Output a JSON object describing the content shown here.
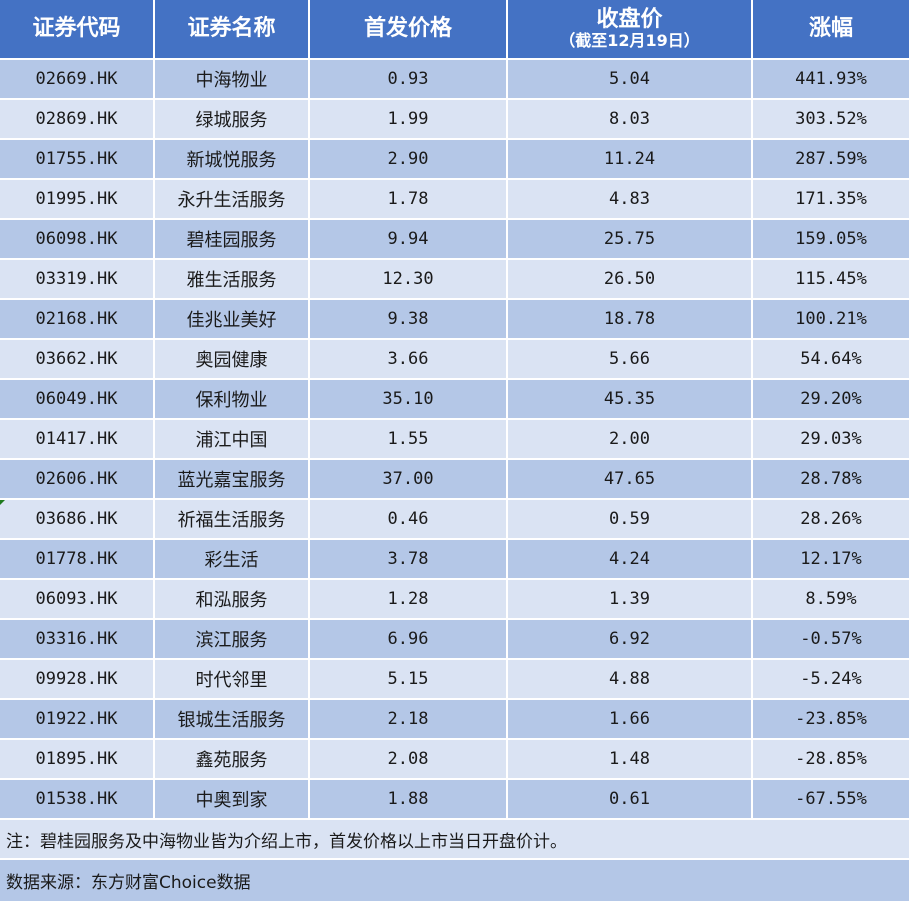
{
  "table": {
    "headers": {
      "code": "证券代码",
      "name": "证券名称",
      "ipo_price": "首发价格",
      "close_price": "收盘价",
      "close_price_sub": "（截至12月19日）",
      "change": "涨幅"
    },
    "rows": [
      {
        "code": "02669.HK",
        "name": "中海物业",
        "ipo_price": "0.93",
        "close_price": "5.04",
        "change": "441.93%"
      },
      {
        "code": "02869.HK",
        "name": "绿城服务",
        "ipo_price": "1.99",
        "close_price": "8.03",
        "change": "303.52%"
      },
      {
        "code": "01755.HK",
        "name": "新城悦服务",
        "ipo_price": "2.90",
        "close_price": "11.24",
        "change": "287.59%"
      },
      {
        "code": "01995.HK",
        "name": "永升生活服务",
        "ipo_price": "1.78",
        "close_price": "4.83",
        "change": "171.35%"
      },
      {
        "code": "06098.HK",
        "name": "碧桂园服务",
        "ipo_price": "9.94",
        "close_price": "25.75",
        "change": "159.05%"
      },
      {
        "code": "03319.HK",
        "name": "雅生活服务",
        "ipo_price": "12.30",
        "close_price": "26.50",
        "change": "115.45%"
      },
      {
        "code": "02168.HK",
        "name": "佳兆业美好",
        "ipo_price": "9.38",
        "close_price": "18.78",
        "change": "100.21%"
      },
      {
        "code": "03662.HK",
        "name": "奥园健康",
        "ipo_price": "3.66",
        "close_price": "5.66",
        "change": "54.64%"
      },
      {
        "code": "06049.HK",
        "name": "保利物业",
        "ipo_price": "35.10",
        "close_price": "45.35",
        "change": "29.20%"
      },
      {
        "code": "01417.HK",
        "name": "浦江中国",
        "ipo_price": "1.55",
        "close_price": "2.00",
        "change": "29.03%"
      },
      {
        "code": "02606.HK",
        "name": "蓝光嘉宝服务",
        "ipo_price": "37.00",
        "close_price": "47.65",
        "change": "28.78%"
      },
      {
        "code": "03686.HK",
        "name": "祈福生活服务",
        "ipo_price": "0.46",
        "close_price": "0.59",
        "change": "28.26%"
      },
      {
        "code": "01778.HK",
        "name": "彩生活",
        "ipo_price": "3.78",
        "close_price": "4.24",
        "change": "12.17%"
      },
      {
        "code": "06093.HK",
        "name": "和泓服务",
        "ipo_price": "1.28",
        "close_price": "1.39",
        "change": "8.59%"
      },
      {
        "code": "03316.HK",
        "name": "滨江服务",
        "ipo_price": "6.96",
        "close_price": "6.92",
        "change": "-0.57%"
      },
      {
        "code": "09928.HK",
        "name": "时代邻里",
        "ipo_price": "5.15",
        "close_price": "4.88",
        "change": "-5.24%"
      },
      {
        "code": "01922.HK",
        "name": "银城生活服务",
        "ipo_price": "2.18",
        "close_price": "1.66",
        "change": "-23.85%"
      },
      {
        "code": "01895.HK",
        "name": "鑫苑服务",
        "ipo_price": "2.08",
        "close_price": "1.48",
        "change": "-28.85%"
      },
      {
        "code": "01538.HK",
        "name": "中奥到家",
        "ipo_price": "1.88",
        "close_price": "0.61",
        "change": "-67.55%"
      }
    ],
    "note": "注：碧桂园服务及中海物业皆为介绍上市，首发价格以上市当日开盘价计。",
    "source": "数据来源：东方财富Choice数据"
  },
  "colors": {
    "header_bg": "#4472c4",
    "row_dark": "#b4c7e7",
    "row_light": "#dae3f3"
  }
}
